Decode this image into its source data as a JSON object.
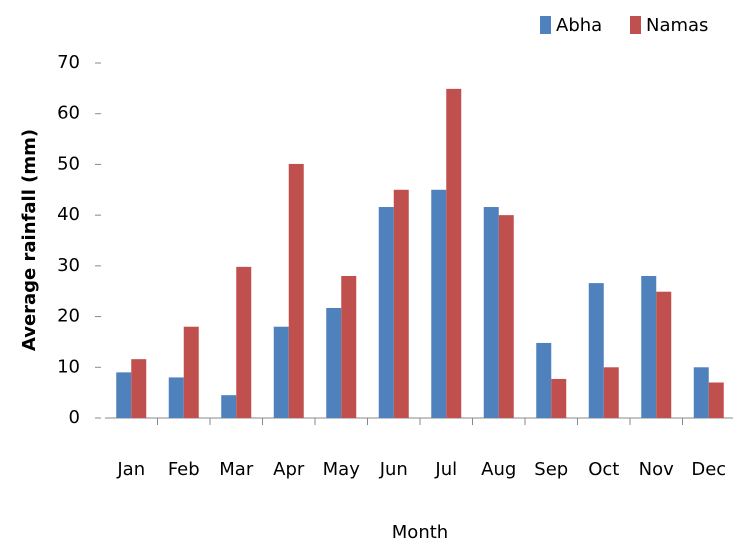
{
  "chart_data": {
    "type": "bar",
    "x_label": "Month",
    "y_label": "Average rainfall (mm)",
    "categories": [
      "Jan",
      "Feb",
      "Mar",
      "Apr",
      "May",
      "Jun",
      "Jul",
      "Aug",
      "Sep",
      "Oct",
      "Nov",
      "Dec"
    ],
    "series": [
      {
        "name": "Abha",
        "color": "#4f81bd",
        "values": [
          9,
          8,
          4.5,
          18,
          21.7,
          41.6,
          45,
          41.6,
          14.8,
          26.6,
          28,
          10
        ]
      },
      {
        "name": "Namas",
        "color": "#c0504d",
        "values": [
          11.6,
          18,
          29.8,
          50.1,
          28,
          45,
          64.9,
          40,
          7.7,
          10,
          24.9,
          7
        ]
      }
    ],
    "ylim": [
      0,
      70
    ],
    "yticks": [
      0,
      10,
      20,
      30,
      40,
      50,
      60,
      70
    ],
    "grid": false,
    "legend": "top-right"
  }
}
